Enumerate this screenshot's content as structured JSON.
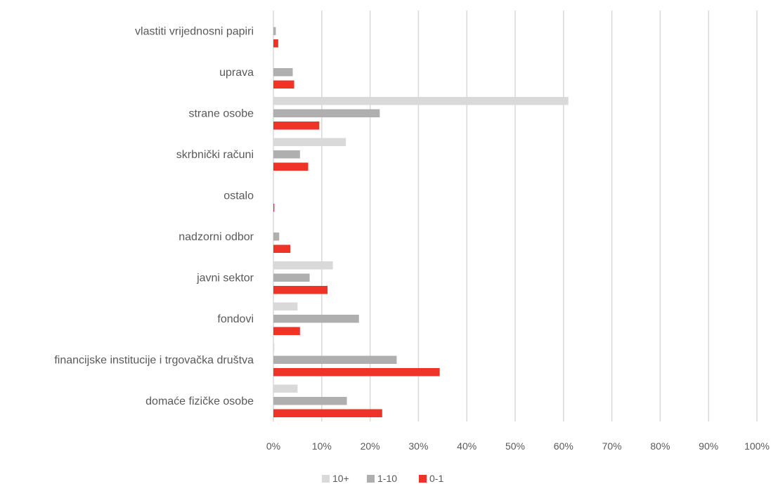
{
  "chart_data": {
    "type": "bar",
    "orientation": "horizontal",
    "categories": [
      "vlastiti vrijednosni papiri",
      "uprava",
      "strane osobe",
      "skrbnički računi",
      "ostalo",
      "nadzorni odbor",
      "javni sektor",
      "fondovi",
      "financijske institucije i trgovačka društva",
      "domaće fizičke osobe"
    ],
    "series": [
      {
        "name": "10+",
        "color": "#d9d9d9",
        "values": [
          0,
          0,
          61,
          15,
          0,
          0,
          12.3,
          5,
          0.2,
          5
        ]
      },
      {
        "name": "1-10",
        "color": "#afafaf",
        "values": [
          0.5,
          4,
          22,
          5.5,
          0,
          1.2,
          7.5,
          17.7,
          25.5,
          15.2
        ]
      },
      {
        "name": "0-1",
        "color": "#ef3329",
        "values": [
          1,
          4.3,
          9.5,
          7.2,
          0.2,
          3.5,
          11.2,
          5.5,
          34.4,
          22.5
        ]
      }
    ],
    "xlim": [
      0,
      100
    ],
    "x_ticks": [
      "0%",
      "10%",
      "20%",
      "30%",
      "40%",
      "50%",
      "60%",
      "70%",
      "80%",
      "90%",
      "100%"
    ],
    "grid": "vertical",
    "legend_position": "bottom",
    "title": "",
    "xlabel": "",
    "ylabel": ""
  }
}
